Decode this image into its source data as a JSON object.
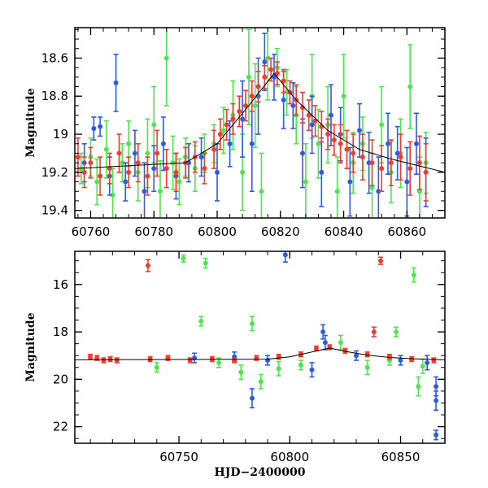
{
  "chart_data": [
    {
      "type": "scatter",
      "title": "",
      "xlabel": "",
      "ylabel": "Magnitude",
      "xlim": [
        60755,
        60872
      ],
      "ylim": [
        19.44,
        18.44
      ],
      "y_inverted": true,
      "grid": false,
      "x_ticks": [
        60760,
        60780,
        60800,
        60820,
        60840,
        60860
      ],
      "x_tick_labels": [
        "60760",
        "60780",
        "60800",
        "60820",
        "60840",
        "60860"
      ],
      "y_ticks": [
        18.6,
        18.8,
        19,
        19.2,
        19.4
      ],
      "y_tick_labels": [
        "18.6",
        "18.8",
        "19",
        "19.2",
        "19.4"
      ],
      "series": [
        {
          "color": "#4be84b",
          "points": [
            [
              60757,
              19.18,
              0.08
            ],
            [
              60760,
              19.12,
              0.1
            ],
            [
              60762,
              19.25,
              0.12
            ],
            [
              60765,
              19.08,
              0.15
            ],
            [
              60767,
              19.32,
              0.14
            ],
            [
              60770,
              19.15,
              0.1
            ],
            [
              60772,
              19.05,
              0.12
            ],
            [
              60775,
              19.2,
              0.15
            ],
            [
              60778,
              19.1,
              0.18
            ],
            [
              60780,
              18.95,
              0.2
            ],
            [
              60782,
              19.3,
              0.16
            ],
            [
              60784,
              18.6,
              0.25
            ],
            [
              60786,
              19.15,
              0.14
            ],
            [
              60788,
              19.25,
              0.12
            ],
            [
              60790,
              19.12,
              0.1
            ],
            [
              60793,
              19.18,
              0.12
            ],
            [
              60796,
              19.1,
              0.1
            ],
            [
              60799,
              19.05,
              0.1
            ],
            [
              60802,
              18.98,
              0.12
            ],
            [
              60805,
              18.9,
              0.18
            ],
            [
              60808,
              19.2,
              0.2
            ],
            [
              60810,
              18.7,
              0.25
            ],
            [
              60812,
              18.85,
              0.22
            ],
            [
              60814,
              19.3,
              0.2
            ],
            [
              60816,
              18.6,
              0.22
            ],
            [
              60819,
              18.65,
              0.1
            ],
            [
              60822,
              18.78,
              0.12
            ],
            [
              60825,
              18.9,
              0.15
            ],
            [
              60828,
              19.25,
              0.2
            ],
            [
              60830,
              18.8,
              0.22
            ],
            [
              60832,
              19.05,
              0.18
            ],
            [
              60835,
              18.95,
              0.2
            ],
            [
              60838,
              19.3,
              0.18
            ],
            [
              60840,
              18.8,
              0.22
            ],
            [
              60843,
              19.15,
              0.16
            ],
            [
              60846,
              19.05,
              0.14
            ],
            [
              60849,
              19.28,
              0.18
            ],
            [
              60852,
              18.95,
              0.2
            ],
            [
              60855,
              19.2,
              0.16
            ],
            [
              60858,
              19.1,
              0.18
            ],
            [
              60861,
              18.75,
              0.22
            ],
            [
              60864,
              19.3,
              0.18
            ],
            [
              60866,
              19.15,
              0.16
            ]
          ]
        },
        {
          "color": "#2b5ce8",
          "points": [
            [
              60758,
              19.15,
              0.1
            ],
            [
              60761,
              18.97,
              0.06
            ],
            [
              60763,
              18.96,
              0.05
            ],
            [
              60766,
              19.22,
              0.1
            ],
            [
              60768,
              18.73,
              0.15
            ],
            [
              60771,
              19.25,
              0.1
            ],
            [
              60774,
              19.1,
              0.12
            ],
            [
              60777,
              19.3,
              0.15
            ],
            [
              60780,
              19.18,
              0.12
            ],
            [
              60783,
              19.05,
              0.14
            ],
            [
              60787,
              19.22,
              0.12
            ],
            [
              60791,
              19.15,
              0.1
            ],
            [
              60795,
              19.12,
              0.1
            ],
            [
              60800,
              19.2,
              0.15
            ],
            [
              60804,
              19.05,
              0.12
            ],
            [
              60808,
              18.92,
              0.2
            ],
            [
              60811,
              19.05,
              0.25
            ],
            [
              60813,
              18.8,
              0.2
            ],
            [
              60815,
              18.62,
              0.15
            ],
            [
              60818,
              18.7,
              0.12
            ],
            [
              60821,
              18.82,
              0.15
            ],
            [
              60824,
              18.85,
              0.12
            ],
            [
              60827,
              19.1,
              0.18
            ],
            [
              60830,
              18.95,
              0.15
            ],
            [
              60833,
              19.2,
              0.18
            ],
            [
              60836,
              18.9,
              0.16
            ],
            [
              60839,
              19.0,
              0.14
            ],
            [
              60842,
              19.25,
              0.18
            ],
            [
              60845,
              18.98,
              0.14
            ],
            [
              60848,
              19.15,
              0.16
            ],
            [
              60851,
              19.3,
              0.18
            ],
            [
              60854,
              19.05,
              0.16
            ],
            [
              60857,
              19.1,
              0.14
            ],
            [
              60860,
              19.25,
              0.18
            ],
            [
              60863,
              19.05,
              0.16
            ],
            [
              60866,
              19.2,
              0.18
            ]
          ]
        },
        {
          "color": "#f43c2c",
          "points": [
            [
              60756,
              19.12,
              0.1
            ],
            [
              60758,
              19.2,
              0.08
            ],
            [
              60760,
              19.15,
              0.08
            ],
            [
              60763,
              19.22,
              0.1
            ],
            [
              60766,
              19.18,
              0.08
            ],
            [
              60769,
              19.1,
              0.1
            ],
            [
              60772,
              19.2,
              0.08
            ],
            [
              60775,
              19.15,
              0.1
            ],
            [
              60778,
              19.22,
              0.1
            ],
            [
              60781,
              19.1,
              0.12
            ],
            [
              60784,
              19.18,
              0.1
            ],
            [
              60787,
              19.2,
              0.1
            ],
            [
              60790,
              19.15,
              0.08
            ],
            [
              60793,
              19.12,
              0.08
            ],
            [
              60796,
              19.18,
              0.08
            ],
            [
              60799,
              19.08,
              0.1
            ],
            [
              60801,
              19.0,
              0.08
            ],
            [
              60803,
              18.95,
              0.08
            ],
            [
              60805,
              18.92,
              0.08
            ],
            [
              60807,
              18.88,
              0.08
            ],
            [
              60809,
              18.85,
              0.08
            ],
            [
              60811,
              18.8,
              0.08
            ],
            [
              60813,
              18.75,
              0.08
            ],
            [
              60815,
              18.7,
              0.06
            ],
            [
              60817,
              18.66,
              0.06
            ],
            [
              60819,
              18.68,
              0.06
            ],
            [
              60821,
              18.72,
              0.06
            ],
            [
              60823,
              18.78,
              0.06
            ],
            [
              60825,
              18.82,
              0.08
            ],
            [
              60827,
              18.86,
              0.08
            ],
            [
              60829,
              18.9,
              0.08
            ],
            [
              60831,
              18.93,
              0.08
            ],
            [
              60833,
              18.96,
              0.08
            ],
            [
              60835,
              19.0,
              0.08
            ],
            [
              60837,
              19.03,
              0.08
            ],
            [
              60839,
              19.05,
              0.1
            ],
            [
              60841,
              19.08,
              0.1
            ],
            [
              60843,
              19.1,
              0.1
            ],
            [
              60846,
              19.12,
              0.12
            ],
            [
              60849,
              19.15,
              0.12
            ],
            [
              60852,
              19.18,
              0.12
            ],
            [
              60855,
              19.15,
              0.12
            ],
            [
              60858,
              19.12,
              0.12
            ],
            [
              60861,
              19.18,
              0.14
            ],
            [
              60864,
              19.15,
              0.14
            ],
            [
              60866,
              19.2,
              0.15
            ]
          ]
        }
      ],
      "model_line": [
        [
          60755,
          19.18
        ],
        [
          60790,
          19.15
        ],
        [
          60800,
          19.05
        ],
        [
          60810,
          18.85
        ],
        [
          60818,
          18.68
        ],
        [
          60825,
          18.82
        ],
        [
          60835,
          18.98
        ],
        [
          60845,
          19.08
        ],
        [
          60855,
          19.13
        ],
        [
          60872,
          19.2
        ]
      ]
    },
    {
      "type": "scatter",
      "title": "",
      "xlabel": "HJD−2400000",
      "ylabel": "Magnitude",
      "xlim": [
        60703,
        60870
      ],
      "ylim": [
        22.7,
        14.6
      ],
      "y_inverted": true,
      "grid": false,
      "x_ticks": [
        60750,
        60800,
        60850
      ],
      "x_tick_labels": [
        "60750",
        "60800",
        "60850"
      ],
      "y_ticks": [
        16,
        18,
        20,
        22
      ],
      "y_tick_labels": [
        "16",
        "18",
        "20",
        "22"
      ],
      "series": [
        {
          "color": "#4be84b",
          "points": [
            [
              60752,
              14.9,
              0.15
            ],
            [
              60760,
              17.55,
              0.2
            ],
            [
              60762,
              15.1,
              0.2
            ],
            [
              60783,
              17.65,
              0.3
            ],
            [
              60787,
              20.1,
              0.3
            ],
            [
              60778,
              19.7,
              0.3
            ],
            [
              60795,
              19.55,
              0.3
            ],
            [
              60823,
              18.45,
              0.3
            ],
            [
              60848,
              18.0,
              0.2
            ],
            [
              60856,
              15.6,
              0.3
            ],
            [
              60835,
              19.5,
              0.3
            ],
            [
              60858,
              20.3,
              0.4
            ],
            [
              60740,
              19.5,
              0.2
            ],
            [
              60768,
              19.3,
              0.2
            ],
            [
              60805,
              19.4,
              0.2
            ],
            [
              60845,
              19.2,
              0.2
            ],
            [
              60860,
              19.45,
              0.3
            ]
          ]
        },
        {
          "color": "#2b5ce8",
          "points": [
            [
              60798,
              14.75,
              0.3
            ],
            [
              60783,
              20.8,
              0.4
            ],
            [
              60816,
              18.45,
              0.3
            ],
            [
              60815,
              18.0,
              0.3
            ],
            [
              60866,
              20.3,
              0.4
            ],
            [
              60866,
              20.9,
              0.4
            ],
            [
              60866,
              22.35,
              0.2
            ],
            [
              60757,
              19.1,
              0.2
            ],
            [
              60775,
              19.05,
              0.2
            ],
            [
              60790,
              19.2,
              0.2
            ],
            [
              60810,
              19.6,
              0.3
            ],
            [
              60830,
              19.0,
              0.2
            ],
            [
              60850,
              19.2,
              0.2
            ],
            [
              60862,
              19.3,
              0.3
            ]
          ]
        },
        {
          "color": "#f43c2c",
          "points": [
            [
              60736,
              15.2,
              0.25
            ],
            [
              60841,
              15.0,
              0.15
            ],
            [
              60710,
              19.05,
              0.1
            ],
            [
              60713,
              19.1,
              0.1
            ],
            [
              60716,
              19.2,
              0.1
            ],
            [
              60719,
              19.15,
              0.1
            ],
            [
              60722,
              19.2,
              0.1
            ],
            [
              60737,
              19.15,
              0.1
            ],
            [
              60745,
              19.1,
              0.1
            ],
            [
              60755,
              19.2,
              0.1
            ],
            [
              60765,
              19.15,
              0.1
            ],
            [
              60775,
              19.2,
              0.1
            ],
            [
              60785,
              19.1,
              0.1
            ],
            [
              60795,
              19.05,
              0.1
            ],
            [
              60805,
              18.95,
              0.1
            ],
            [
              60812,
              18.7,
              0.1
            ],
            [
              60818,
              18.65,
              0.1
            ],
            [
              60825,
              18.8,
              0.1
            ],
            [
              60835,
              18.95,
              0.1
            ],
            [
              60845,
              19.05,
              0.1
            ],
            [
              60855,
              19.15,
              0.1
            ],
            [
              60865,
              19.2,
              0.1
            ],
            [
              60838,
              18.0,
              0.2
            ]
          ]
        }
      ],
      "model_line": [
        [
          60703,
          19.18
        ],
        [
          60790,
          19.15
        ],
        [
          60800,
          19.05
        ],
        [
          60810,
          18.85
        ],
        [
          60818,
          18.68
        ],
        [
          60825,
          18.82
        ],
        [
          60835,
          18.98
        ],
        [
          60845,
          19.08
        ],
        [
          60855,
          19.13
        ],
        [
          60870,
          19.18
        ]
      ]
    }
  ]
}
